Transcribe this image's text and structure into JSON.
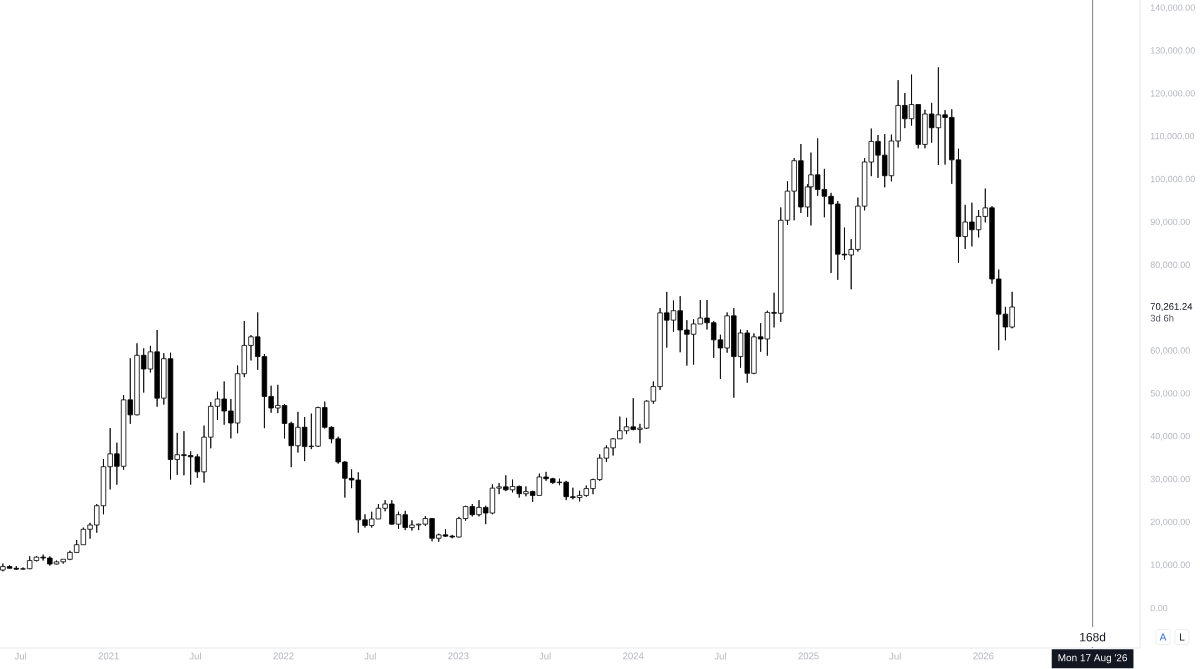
{
  "chart_data": {
    "type": "candlestick",
    "x": [
      "2020-05-25",
      "2020-06-08",
      "2020-06-22",
      "2020-07-06",
      "2020-07-20",
      "2020-08-03",
      "2020-08-17",
      "2020-08-31",
      "2020-09-14",
      "2020-09-28",
      "2020-10-12",
      "2020-10-26",
      "2020-11-09",
      "2020-11-23",
      "2020-12-07",
      "2020-12-21",
      "2021-01-04",
      "2021-01-18",
      "2021-02-01",
      "2021-02-15",
      "2021-03-01",
      "2021-03-15",
      "2021-03-29",
      "2021-04-12",
      "2021-04-26",
      "2021-05-10",
      "2021-05-24",
      "2021-06-07",
      "2021-06-21",
      "2021-07-05",
      "2021-07-19",
      "2021-08-02",
      "2021-08-16",
      "2021-08-30",
      "2021-09-13",
      "2021-09-27",
      "2021-10-11",
      "2021-10-25",
      "2021-11-08",
      "2021-11-22",
      "2021-12-06",
      "2021-12-20",
      "2022-01-03",
      "2022-01-17",
      "2022-01-31",
      "2022-02-14",
      "2022-02-28",
      "2022-03-14",
      "2022-03-28",
      "2022-04-11",
      "2022-04-25",
      "2022-05-09",
      "2022-05-23",
      "2022-06-06",
      "2022-06-20",
      "2022-07-04",
      "2022-07-18",
      "2022-08-01",
      "2022-08-15",
      "2022-08-29",
      "2022-09-12",
      "2022-09-26",
      "2022-10-10",
      "2022-10-24",
      "2022-11-07",
      "2022-11-21",
      "2022-12-05",
      "2022-12-19",
      "2023-01-02",
      "2023-01-16",
      "2023-01-30",
      "2023-02-13",
      "2023-02-27",
      "2023-03-13",
      "2023-03-27",
      "2023-04-10",
      "2023-04-24",
      "2023-05-08",
      "2023-05-22",
      "2023-06-05",
      "2023-06-19",
      "2023-07-03",
      "2023-07-17",
      "2023-07-31",
      "2023-08-14",
      "2023-08-28",
      "2023-09-11",
      "2023-09-25",
      "2023-10-09",
      "2023-10-23",
      "2023-11-06",
      "2023-11-20",
      "2023-12-04",
      "2023-12-18",
      "2024-01-01",
      "2024-01-15",
      "2024-01-29",
      "2024-02-12",
      "2024-02-26",
      "2024-03-11",
      "2024-03-25",
      "2024-04-08",
      "2024-04-22",
      "2024-05-06",
      "2024-05-20",
      "2024-06-03",
      "2024-06-17",
      "2024-07-01",
      "2024-07-15",
      "2024-07-29",
      "2024-08-12",
      "2024-08-26",
      "2024-09-09",
      "2024-09-23",
      "2024-10-07",
      "2024-10-21",
      "2024-11-04",
      "2024-11-18",
      "2024-12-02",
      "2024-12-16",
      "2024-12-30",
      "2025-01-06",
      "2025-01-20",
      "2025-02-03",
      "2025-02-17",
      "2025-03-03",
      "2025-03-17",
      "2025-03-31",
      "2025-04-14",
      "2025-04-28",
      "2025-05-12",
      "2025-05-26",
      "2025-06-09",
      "2025-06-23",
      "2025-07-07",
      "2025-07-21",
      "2025-08-04",
      "2025-08-18",
      "2025-09-01",
      "2025-09-15",
      "2025-09-29",
      "2025-10-13",
      "2025-10-27",
      "2025-11-10",
      "2025-11-24",
      "2025-12-08",
      "2025-12-22",
      "2026-01-05",
      "2026-01-19",
      "2026-02-02",
      "2026-02-16",
      "2026-03-02"
    ],
    "ohlc": [
      [
        8900,
        10400,
        8600,
        9700
      ],
      [
        9700,
        10000,
        9200,
        9300
      ],
      [
        9300,
        9800,
        8900,
        9100
      ],
      [
        9100,
        9500,
        9000,
        9200
      ],
      [
        9200,
        12100,
        9100,
        11100
      ],
      [
        11100,
        12100,
        10900,
        11900
      ],
      [
        11900,
        12500,
        11100,
        11700
      ],
      [
        11700,
        12100,
        9900,
        10300
      ],
      [
        10300,
        11100,
        10200,
        10800
      ],
      [
        10800,
        11400,
        10400,
        11400
      ],
      [
        11400,
        13400,
        11200,
        13000
      ],
      [
        13000,
        15900,
        12900,
        14800
      ],
      [
        14800,
        18800,
        14800,
        18400
      ],
      [
        18400,
        19900,
        16200,
        19400
      ],
      [
        19400,
        24300,
        17600,
        23900
      ],
      [
        23900,
        34800,
        21900,
        33000
      ],
      [
        33000,
        42000,
        27700,
        36000
      ],
      [
        36000,
        38600,
        28800,
        33100
      ],
      [
        33100,
        49700,
        32300,
        48600
      ],
      [
        48600,
        58300,
        43000,
        45100
      ],
      [
        45100,
        61800,
        45000,
        59000
      ],
      [
        59000,
        60600,
        50300,
        55800
      ],
      [
        55800,
        61200,
        55000,
        59800
      ],
      [
        59800,
        64900,
        47000,
        49000
      ],
      [
        49000,
        59500,
        47500,
        58200
      ],
      [
        58200,
        59600,
        30000,
        34700
      ],
      [
        34700,
        40900,
        31100,
        35800
      ],
      [
        35800,
        41300,
        31000,
        35600
      ],
      [
        35600,
        36600,
        28800,
        35300
      ],
      [
        35300,
        35900,
        30400,
        31800
      ],
      [
        31800,
        42600,
        29300,
        39900
      ],
      [
        39900,
        48100,
        37300,
        47100
      ],
      [
        47100,
        50500,
        43900,
        48800
      ],
      [
        48800,
        52900,
        42800,
        46000
      ],
      [
        46000,
        48800,
        39600,
        43200
      ],
      [
        43200,
        56600,
        40800,
        54700
      ],
      [
        54700,
        67000,
        53900,
        61300
      ],
      [
        61300,
        63700,
        57800,
        63300
      ],
      [
        63300,
        69000,
        55600,
        58700
      ],
      [
        58700,
        59300,
        42000,
        49400
      ],
      [
        49400,
        51900,
        45600,
        46700
      ],
      [
        46700,
        52100,
        45500,
        47300
      ],
      [
        47300,
        47600,
        39600,
        43100
      ],
      [
        43100,
        43500,
        32900,
        37900
      ],
      [
        37900,
        45800,
        36300,
        42200
      ],
      [
        42200,
        44600,
        34300,
        37700
      ],
      [
        37700,
        45400,
        37100,
        37800
      ],
      [
        37800,
        47000,
        37600,
        46800
      ],
      [
        46800,
        48200,
        41900,
        42200
      ],
      [
        42200,
        42400,
        38500,
        39500
      ],
      [
        39500,
        40000,
        33700,
        34100
      ],
      [
        34100,
        34300,
        25800,
        30300
      ],
      [
        30300,
        32400,
        28000,
        29900
      ],
      [
        29900,
        31700,
        17600,
        20600
      ],
      [
        20600,
        21900,
        18800,
        19300
      ],
      [
        19300,
        22500,
        18800,
        20800
      ],
      [
        20800,
        24300,
        20800,
        23300
      ],
      [
        23300,
        25200,
        22600,
        24300
      ],
      [
        24300,
        25200,
        19500,
        19600
      ],
      [
        19600,
        22500,
        18500,
        21800
      ],
      [
        21800,
        22700,
        18200,
        18800
      ],
      [
        18800,
        20500,
        18100,
        19400
      ],
      [
        19400,
        19700,
        18200,
        19600
      ],
      [
        19600,
        21500,
        19200,
        20900
      ],
      [
        20900,
        21000,
        15600,
        16300
      ],
      [
        16300,
        17400,
        15500,
        17100
      ],
      [
        17100,
        18400,
        16600,
        16800
      ],
      [
        16800,
        17100,
        16300,
        16600
      ],
      [
        16600,
        21300,
        16500,
        20900
      ],
      [
        20900,
        23900,
        20400,
        23700
      ],
      [
        23700,
        24300,
        21400,
        21800
      ],
      [
        21800,
        25200,
        21400,
        23500
      ],
      [
        23500,
        23900,
        19600,
        22200
      ],
      [
        22200,
        28900,
        21900,
        28000
      ],
      [
        28000,
        29200,
        26600,
        28300
      ],
      [
        28300,
        31000,
        27300,
        27600
      ],
      [
        27600,
        30000,
        27000,
        28400
      ],
      [
        28400,
        28600,
        25800,
        26700
      ],
      [
        26700,
        28400,
        26100,
        27200
      ],
      [
        27200,
        27400,
        24800,
        26300
      ],
      [
        26300,
        31400,
        26300,
        30600
      ],
      [
        30600,
        31800,
        29700,
        30200
      ],
      [
        30200,
        30400,
        29000,
        29300
      ],
      [
        29300,
        30200,
        28700,
        29400
      ],
      [
        29400,
        29700,
        25200,
        26000
      ],
      [
        26000,
        28100,
        25400,
        25800
      ],
      [
        25800,
        27400,
        24900,
        26300
      ],
      [
        26300,
        28600,
        26000,
        27900
      ],
      [
        27900,
        30200,
        26600,
        30000
      ],
      [
        30000,
        35900,
        29700,
        35000
      ],
      [
        35000,
        38000,
        34100,
        37400
      ],
      [
        37400,
        39700,
        35600,
        39500
      ],
      [
        39500,
        44700,
        39500,
        41400
      ],
      [
        41400,
        44400,
        40600,
        42300
      ],
      [
        42300,
        49000,
        41500,
        41700
      ],
      [
        41700,
        43000,
        38500,
        42000
      ],
      [
        42000,
        48500,
        41800,
        48300
      ],
      [
        48300,
        52900,
        47700,
        51700
      ],
      [
        51700,
        70000,
        50900,
        68900
      ],
      [
        68900,
        73800,
        60800,
        67200
      ],
      [
        67200,
        71800,
        64500,
        69400
      ],
      [
        69400,
        72800,
        59700,
        64900
      ],
      [
        64900,
        67200,
        56600,
        63900
      ],
      [
        63900,
        67400,
        56800,
        66300
      ],
      [
        66300,
        71900,
        66300,
        67700
      ],
      [
        67700,
        71900,
        65000,
        66600
      ],
      [
        66600,
        67000,
        58400,
        62600
      ],
      [
        62600,
        63800,
        53500,
        60700
      ],
      [
        60700,
        69000,
        59600,
        68200
      ],
      [
        68200,
        70000,
        49100,
        58700
      ],
      [
        58700,
        65000,
        56100,
        64200
      ],
      [
        64200,
        64900,
        52600,
        54800
      ],
      [
        54800,
        64100,
        54600,
        63300
      ],
      [
        63300,
        66500,
        59800,
        62800
      ],
      [
        62800,
        69400,
        58900,
        69000
      ],
      [
        69000,
        73600,
        65500,
        68800
      ],
      [
        68800,
        93500,
        66800,
        90500
      ],
      [
        90500,
        99600,
        89400,
        97300
      ],
      [
        97300,
        105000,
        90500,
        104400
      ],
      [
        104400,
        108300,
        92200,
        93600
      ],
      [
        93600,
        98900,
        91300,
        98300
      ],
      [
        98300,
        106300,
        89300,
        101100
      ],
      [
        101100,
        109600,
        96200,
        97700
      ],
      [
        97700,
        102500,
        91200,
        96100
      ],
      [
        96100,
        96900,
        78200,
        94300
      ],
      [
        94300,
        95000,
        76600,
        82600
      ],
      [
        82600,
        88800,
        81300,
        82400
      ],
      [
        82400,
        86100,
        74400,
        83700
      ],
      [
        83700,
        95800,
        83200,
        93800
      ],
      [
        93800,
        105000,
        92800,
        104100
      ],
      [
        104100,
        111900,
        100800,
        108900
      ],
      [
        108900,
        110400,
        100400,
        105700
      ],
      [
        105700,
        110600,
        98200,
        100900
      ],
      [
        100900,
        110500,
        99600,
        109000
      ],
      [
        109000,
        123200,
        107500,
        117300
      ],
      [
        117300,
        120200,
        112000,
        114200
      ],
      [
        114200,
        124500,
        112600,
        117500
      ],
      [
        117500,
        117600,
        107300,
        108200
      ],
      [
        108200,
        116300,
        107300,
        115300
      ],
      [
        115300,
        117900,
        108600,
        112100
      ],
      [
        112100,
        126200,
        103400,
        115100
      ],
      [
        115100,
        116200,
        103500,
        114500
      ],
      [
        114500,
        116400,
        99000,
        104600
      ],
      [
        104600,
        107200,
        80600,
        86700
      ],
      [
        86700,
        94100,
        83800,
        90100
      ],
      [
        90100,
        94600,
        84400,
        88300
      ],
      [
        88300,
        92900,
        86500,
        91400
      ],
      [
        91400,
        97900,
        90000,
        93400
      ],
      [
        93400,
        93800,
        75700,
        76800
      ],
      [
        76800,
        79000,
        60200,
        68600
      ],
      [
        68600,
        70300,
        62500,
        65600
      ],
      [
        65600,
        73800,
        65300,
        70261.24
      ]
    ],
    "color": "#000000",
    "xlim": [
      "2020-05-19",
      "2026-11-24"
    ],
    "ylim": [
      -9300,
      141900
    ],
    "xticks": [
      {
        "value": "2020-07-01",
        "label": "Jul"
      },
      {
        "value": "2021-01-01",
        "label": "2021"
      },
      {
        "value": "2021-07-01",
        "label": "Jul"
      },
      {
        "value": "2022-01-01",
        "label": "2022"
      },
      {
        "value": "2022-07-01",
        "label": "Jul"
      },
      {
        "value": "2023-01-01",
        "label": "2023"
      },
      {
        "value": "2023-07-01",
        "label": "Jul"
      },
      {
        "value": "2024-01-01",
        "label": "2024"
      },
      {
        "value": "2024-07-01",
        "label": "Jul"
      },
      {
        "value": "2025-01-01",
        "label": "2025"
      },
      {
        "value": "2025-07-01",
        "label": "Jul"
      },
      {
        "value": "2026-01-01",
        "label": "2026"
      }
    ],
    "yticks": [
      {
        "value": 0,
        "label": "0.00"
      },
      {
        "value": 10000,
        "label": "10,000.00"
      },
      {
        "value": 20000,
        "label": "20,000.00"
      },
      {
        "value": 30000,
        "label": "30,000.00"
      },
      {
        "value": 40000,
        "label": "40,000.00"
      },
      {
        "value": 50000,
        "label": "50,000.00"
      },
      {
        "value": 60000,
        "label": "60,000.00"
      },
      {
        "value": 80000,
        "label": "80,000.00"
      },
      {
        "value": 90000,
        "label": "90,000.00"
      },
      {
        "value": 100000,
        "label": "100,000.00"
      },
      {
        "value": 110000,
        "label": "110,000.00"
      },
      {
        "value": 120000,
        "label": "120,000.00"
      },
      {
        "value": 130000,
        "label": "130,000.00"
      },
      {
        "value": 140000,
        "label": "140,000.00"
      }
    ],
    "ref_lines": [
      {
        "axis": "x",
        "value": "2026-08-17",
        "label": "Mon 17 Aug '26",
        "color": "#868993"
      }
    ],
    "annotations": [
      "70,261.24",
      "3d 6h",
      {
        "text": "168d",
        "x": "2026-08-17"
      },
      "A",
      "L"
    ]
  }
}
